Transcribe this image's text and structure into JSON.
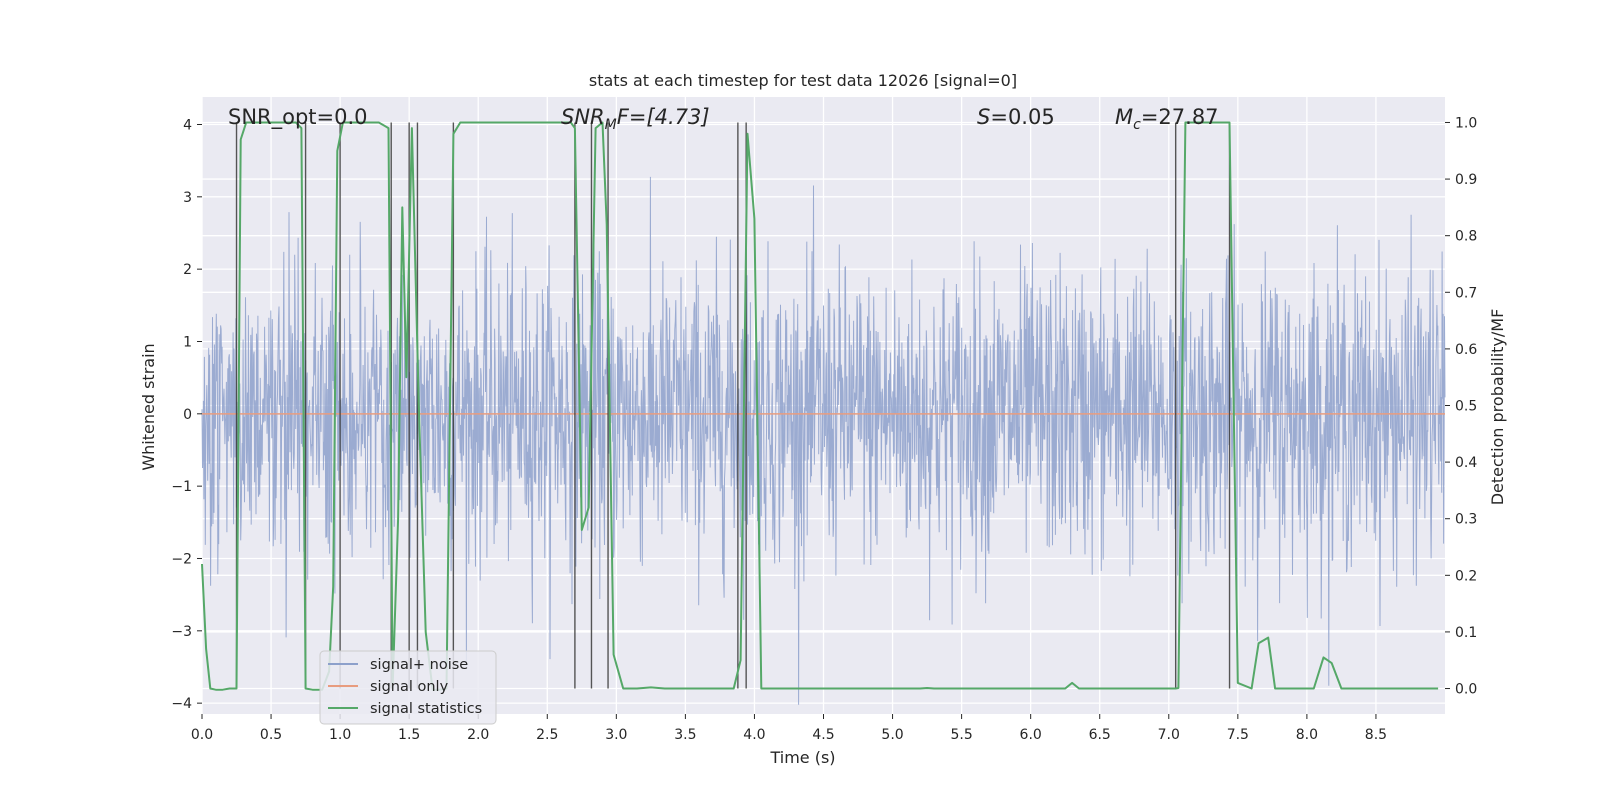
{
  "chart_data": {
    "type": "line",
    "title": "stats at each timestep for test data 12026 [signal=0]",
    "xlabel": "Time (s)",
    "ylabel": "Whitened strain",
    "y2label": "Detection probability/MF",
    "xlim": [
      0.0,
      9.0
    ],
    "ylim": [
      -4.15,
      4.38
    ],
    "y2lim": [
      -0.045,
      1.045
    ],
    "xticks": [
      "0.0",
      "0.5",
      "1.0",
      "1.5",
      "2.0",
      "2.5",
      "3.0",
      "3.5",
      "4.0",
      "4.5",
      "5.0",
      "5.5",
      "6.0",
      "6.5",
      "7.0",
      "7.5",
      "8.0",
      "8.5"
    ],
    "yticks": [
      "−4",
      "−3",
      "−2",
      "−1",
      "0",
      "1",
      "2",
      "3",
      "4"
    ],
    "y2ticks": [
      "0.0",
      "0.1",
      "0.2",
      "0.3",
      "0.4",
      "0.5",
      "0.6",
      "0.7",
      "0.8",
      "0.9",
      "1.0"
    ],
    "grid": true,
    "legend_position": "lower-left",
    "annotations": {
      "snr_opt": "SNR_opt=0.0",
      "snr_mf_base": "SNR",
      "snr_mf_sub": "M",
      "snr_mf_rest": "F=[4.73]",
      "s_var": "S",
      "s_val": "=0.05",
      "mc_var": "M",
      "mc_sub": "c",
      "mc_val": "=27.87"
    },
    "series": [
      {
        "name": "signal+ noise",
        "axis": "left",
        "color": "#8da0cb",
        "description_values": "white-noise whitened strain, amplitude mostly within ±2.5, peaks up to ±4",
        "amplitude_std": 1.0,
        "x_range": [
          0.0,
          9.0
        ]
      },
      {
        "name": "signal only",
        "axis": "left",
        "color": "#e89c7f",
        "x": [
          0.0,
          9.0
        ],
        "y": [
          0.0,
          0.0
        ]
      },
      {
        "name": "signal statistics",
        "axis": "right",
        "color": "#55a868",
        "x": [
          0.0,
          0.03,
          0.06,
          0.1,
          0.15,
          0.2,
          0.25,
          0.28,
          0.32,
          0.45,
          0.55,
          0.68,
          0.72,
          0.75,
          0.8,
          0.87,
          0.92,
          0.95,
          0.98,
          1.02,
          1.07,
          1.15,
          1.28,
          1.35,
          1.38,
          1.42,
          1.45,
          1.48,
          1.52,
          1.57,
          1.62,
          1.67,
          1.72,
          1.77,
          1.82,
          1.87,
          1.93,
          2.05,
          2.5,
          2.67,
          2.7,
          2.75,
          2.8,
          2.85,
          2.9,
          2.93,
          2.98,
          3.05,
          3.15,
          3.25,
          3.35,
          3.5,
          3.7,
          3.85,
          3.9,
          3.95,
          4.0,
          4.05,
          4.1,
          4.5,
          5.2,
          5.25,
          5.3,
          6.25,
          6.3,
          6.35,
          7.05,
          7.07,
          7.12,
          7.2,
          7.44,
          7.5,
          7.6,
          7.65,
          7.72,
          7.77,
          7.82,
          8.05,
          8.12,
          8.18,
          8.25,
          8.4,
          8.95
        ],
        "y": [
          0.22,
          0.07,
          0.0,
          -0.002,
          -0.002,
          0.0,
          0.0,
          0.97,
          1.0,
          1.0,
          1.0,
          1.0,
          0.99,
          0.0,
          -0.002,
          -0.002,
          0.03,
          0.18,
          0.95,
          1.0,
          1.0,
          1.0,
          1.0,
          0.99,
          0.0,
          0.3,
          0.85,
          0.55,
          0.99,
          0.5,
          0.1,
          -0.002,
          -0.002,
          0.0,
          0.98,
          1.0,
          1.0,
          1.0,
          1.0,
          1.0,
          0.99,
          0.28,
          0.32,
          0.99,
          1.0,
          0.82,
          0.06,
          0.0,
          0.0,
          0.002,
          0.0,
          0.0,
          0.0,
          0.0,
          0.05,
          0.98,
          0.83,
          0.0,
          0.0,
          0.0,
          0.0,
          0.001,
          0.0,
          0.0,
          0.01,
          0.0,
          0.0,
          0.001,
          1.0,
          1.0,
          1.0,
          0.01,
          0.0,
          0.08,
          0.09,
          0.0,
          0.0,
          0.0,
          0.055,
          0.045,
          0.0,
          0.0,
          0.0
        ]
      }
    ],
    "vertical_lines_x": [
      0.25,
      0.75,
      1.0,
      1.37,
      1.5,
      1.56,
      1.82,
      2.7,
      2.82,
      2.94,
      3.88,
      3.94,
      7.05,
      7.44
    ]
  }
}
